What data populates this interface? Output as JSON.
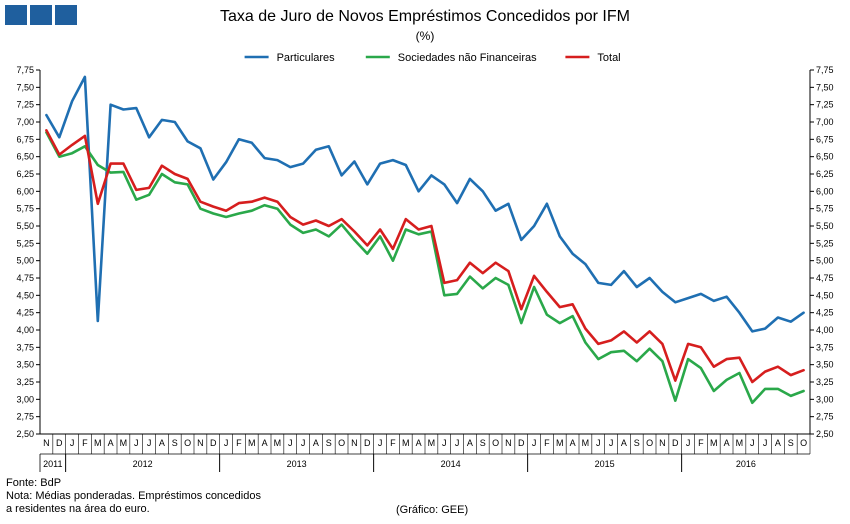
{
  "colors": {
    "logo": "#1f5f9e",
    "particulares": "#1f6fb2",
    "sociedades": "#2aa84a",
    "total": "#d61e1e"
  },
  "title": "Taxa de Juro de Novos Empréstimos Concedidos por IFM",
  "subtitle": "(%)",
  "footer": {
    "fonte": "Fonte: BdP",
    "nota1": "Nota: Médias ponderadas. Empréstimos concedidos",
    "nota2": "a residentes na área do euro.",
    "grafico": "(Gráfico: GEE)"
  },
  "chart_data": {
    "type": "line",
    "title": "Taxa de Juro de Novos Empréstimos Concedidos por IFM",
    "ylabel": "(%)",
    "ylim": [
      2.5,
      7.75
    ],
    "y_ticks": [
      "2,50",
      "2,75",
      "3,00",
      "3,25",
      "3,50",
      "3,75",
      "4,00",
      "4,25",
      "4,50",
      "4,75",
      "5,00",
      "5,25",
      "5,50",
      "5,75",
      "6,00",
      "6,25",
      "6,50",
      "6,75",
      "7,00",
      "7,25",
      "7,50",
      "7,75"
    ],
    "legend_position": "top",
    "grid": false,
    "categories": [
      "N",
      "D",
      "J",
      "F",
      "M",
      "A",
      "M",
      "J",
      "J",
      "A",
      "S",
      "O",
      "N",
      "D",
      "J",
      "F",
      "M",
      "A",
      "M",
      "J",
      "J",
      "A",
      "S",
      "O",
      "N",
      "D",
      "J",
      "F",
      "M",
      "A",
      "M",
      "J",
      "J",
      "A",
      "S",
      "O",
      "N",
      "D",
      "J",
      "F",
      "M",
      "A",
      "M",
      "J",
      "J",
      "A",
      "S",
      "O",
      "N",
      "D",
      "J",
      "F",
      "M",
      "A",
      "M",
      "J",
      "J",
      "A",
      "S",
      "O"
    ],
    "years": [
      {
        "label": "2011",
        "start": 0,
        "end": 1
      },
      {
        "label": "2012",
        "start": 2,
        "end": 13
      },
      {
        "label": "2013",
        "start": 14,
        "end": 25
      },
      {
        "label": "2014",
        "start": 26,
        "end": 37
      },
      {
        "label": "2015",
        "start": 38,
        "end": 49
      },
      {
        "label": "2016",
        "start": 50,
        "end": 59
      }
    ],
    "series": [
      {
        "name": "Particulares",
        "color": "#1f6fb2",
        "values": [
          7.1,
          6.78,
          7.3,
          7.65,
          4.13,
          7.25,
          7.18,
          7.2,
          6.78,
          7.03,
          7.0,
          6.72,
          6.62,
          6.17,
          6.42,
          6.75,
          6.7,
          6.48,
          6.45,
          6.35,
          6.4,
          6.6,
          6.65,
          6.23,
          6.43,
          6.1,
          6.4,
          6.45,
          6.38,
          6.0,
          6.23,
          6.1,
          5.83,
          6.18,
          6.0,
          5.72,
          5.82,
          5.3,
          5.5,
          5.82,
          5.35,
          5.1,
          4.95,
          4.68,
          4.65,
          4.85,
          4.62,
          4.75,
          4.55,
          4.4,
          4.46,
          4.52,
          4.42,
          4.48,
          4.25,
          3.98,
          4.02,
          4.18,
          4.12,
          4.25
        ]
      },
      {
        "name": "Sociedades não Financeiras",
        "color": "#2aa84a",
        "values": [
          6.85,
          6.5,
          6.55,
          6.65,
          6.38,
          6.27,
          6.28,
          5.88,
          5.95,
          6.25,
          6.13,
          6.1,
          5.75,
          5.68,
          5.63,
          5.68,
          5.72,
          5.8,
          5.75,
          5.52,
          5.4,
          5.45,
          5.35,
          5.52,
          5.3,
          5.1,
          5.35,
          5.0,
          5.45,
          5.38,
          5.42,
          4.5,
          4.52,
          4.77,
          4.6,
          4.75,
          4.65,
          4.1,
          4.62,
          4.22,
          4.1,
          4.2,
          3.82,
          3.58,
          3.68,
          3.7,
          3.55,
          3.73,
          3.55,
          2.98,
          3.58,
          3.45,
          3.12,
          3.28,
          3.38,
          2.95,
          3.15,
          3.15,
          3.05,
          3.12
        ]
      },
      {
        "name": "Total",
        "color": "#d61e1e",
        "values": [
          6.88,
          6.53,
          6.67,
          6.8,
          5.82,
          6.4,
          6.4,
          6.02,
          6.05,
          6.37,
          6.25,
          6.18,
          5.85,
          5.78,
          5.72,
          5.83,
          5.85,
          5.91,
          5.85,
          5.63,
          5.52,
          5.58,
          5.5,
          5.6,
          5.42,
          5.22,
          5.45,
          5.17,
          5.6,
          5.45,
          5.5,
          4.68,
          4.72,
          4.97,
          4.82,
          4.97,
          4.85,
          4.3,
          4.78,
          4.55,
          4.33,
          4.37,
          4.02,
          3.8,
          3.85,
          3.98,
          3.82,
          3.98,
          3.8,
          3.27,
          3.8,
          3.75,
          3.47,
          3.58,
          3.6,
          3.25,
          3.4,
          3.47,
          3.35,
          3.42
        ]
      }
    ]
  }
}
